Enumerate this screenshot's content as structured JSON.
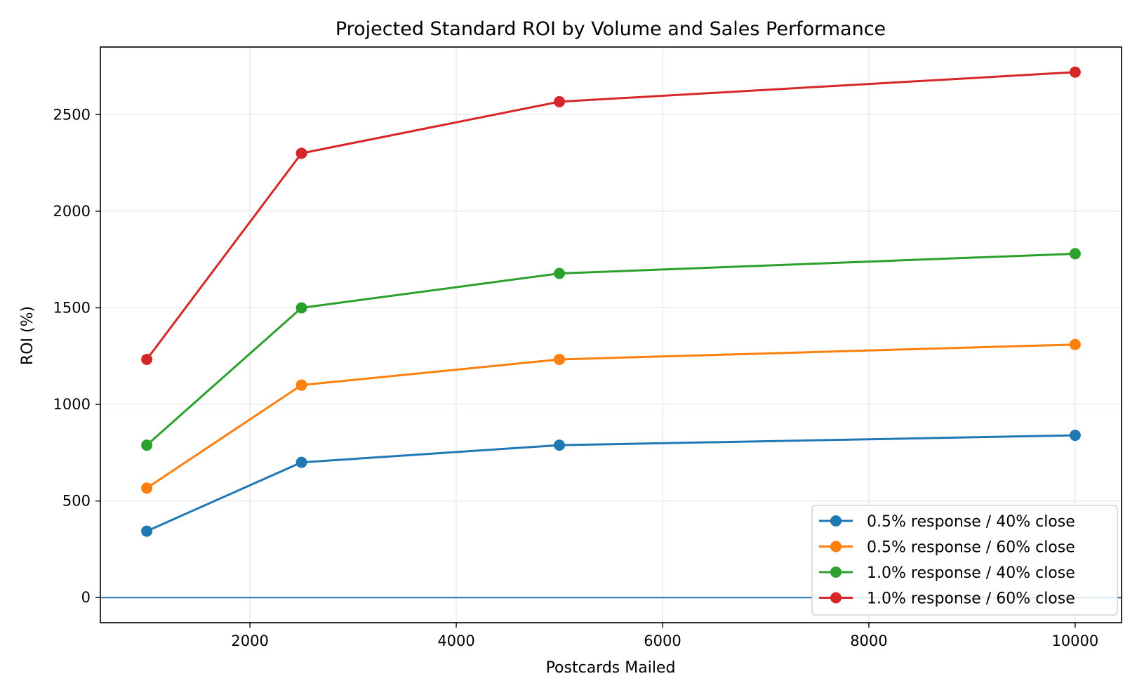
{
  "chart_data": {
    "type": "line",
    "title": "Projected Standard ROI by Volume and Sales Performance",
    "xlabel": "Postcards Mailed",
    "ylabel": "ROI (%)",
    "x": [
      1000,
      2500,
      5000,
      10000
    ],
    "xlim": [
      550,
      10450
    ],
    "ylim": [
      -130,
      2850
    ],
    "xticks": [
      2000,
      4000,
      6000,
      8000,
      10000
    ],
    "yticks": [
      0,
      500,
      1000,
      1500,
      2000,
      2500
    ],
    "grid": true,
    "legend_position": "lower-right",
    "reference_line": {
      "y": 0,
      "color": "#1f77b4"
    },
    "series": [
      {
        "name": "0.5% response / 40% close",
        "color": "#1f77b4",
        "values": [
          344,
          700,
          789,
          840
        ]
      },
      {
        "name": "0.5% response / 60% close",
        "color": "#ff7f0e",
        "values": [
          567,
          1100,
          1233,
          1310
        ]
      },
      {
        "name": "1.0% response / 40% close",
        "color": "#2ca02c",
        "values": [
          789,
          1500,
          1678,
          1780
        ]
      },
      {
        "name": "1.0% response / 60% close",
        "color": "#d62728",
        "values": [
          1233,
          2300,
          2567,
          2720
        ]
      }
    ]
  }
}
